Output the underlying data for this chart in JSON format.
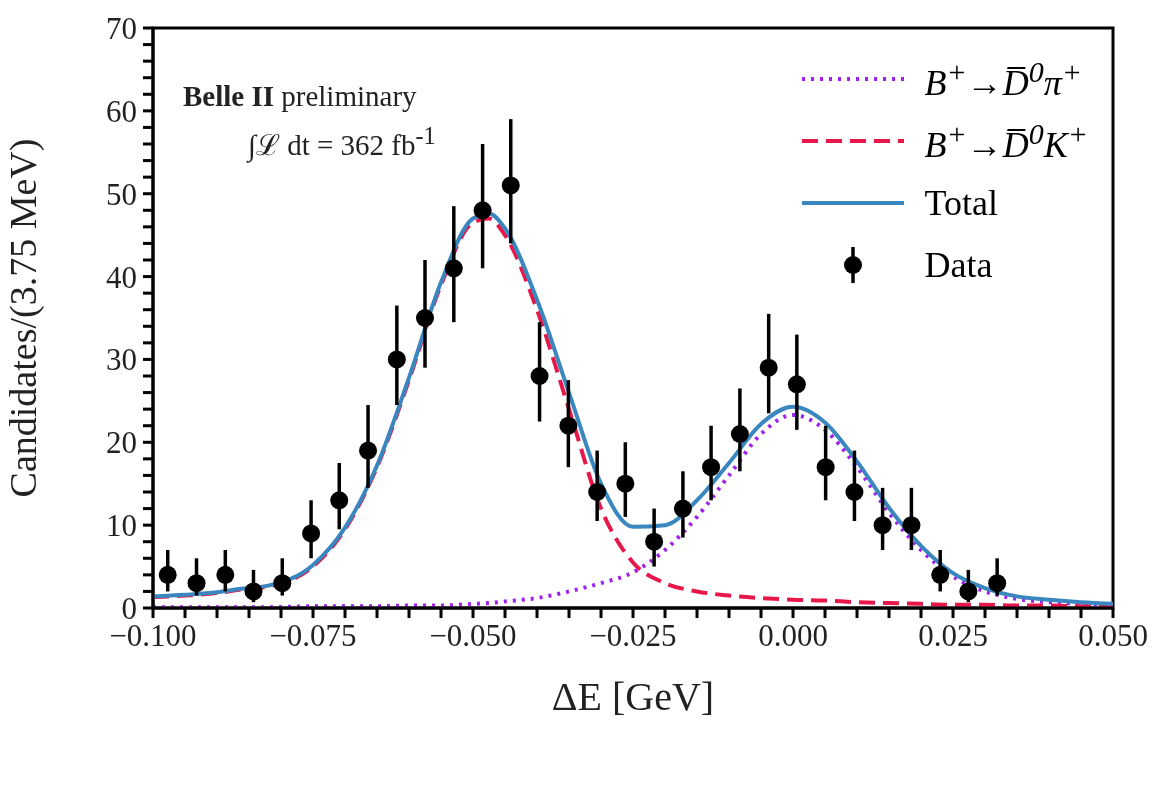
{
  "chart_data": {
    "type": "line",
    "xlabel": "ΔE [GeV]",
    "ylabel": "Candidates/(3.75 MeV)",
    "annotations": [
      "Belle II preliminary",
      "∫ℒ dt = 362 fb$^{-1}$"
    ],
    "xlim": [
      -0.1,
      0.05
    ],
    "ylim": [
      0,
      70
    ],
    "xticks": [
      {
        "value": -0.1,
        "label": "−0.100"
      },
      {
        "value": -0.095,
        "label": null
      },
      {
        "value": -0.09,
        "label": null
      },
      {
        "value": -0.085,
        "label": null
      },
      {
        "value": -0.08,
        "label": null
      },
      {
        "value": -0.075,
        "label": "−0.075"
      },
      {
        "value": -0.07,
        "label": null
      },
      {
        "value": -0.065,
        "label": null
      },
      {
        "value": -0.06,
        "label": null
      },
      {
        "value": -0.055,
        "label": null
      },
      {
        "value": -0.05,
        "label": "−0.050"
      },
      {
        "value": -0.045,
        "label": null
      },
      {
        "value": -0.04,
        "label": null
      },
      {
        "value": -0.035,
        "label": null
      },
      {
        "value": -0.03,
        "label": null
      },
      {
        "value": -0.025,
        "label": "−0.025"
      },
      {
        "value": -0.02,
        "label": null
      },
      {
        "value": -0.015,
        "label": null
      },
      {
        "value": -0.01,
        "label": null
      },
      {
        "value": -0.005,
        "label": null
      },
      {
        "value": 0,
        "label": "0.000"
      },
      {
        "value": 0.005,
        "label": null
      },
      {
        "value": 0.01,
        "label": null
      },
      {
        "value": 0.015,
        "label": null
      },
      {
        "value": 0.02,
        "label": null
      },
      {
        "value": 0.025,
        "label": "0.025"
      },
      {
        "value": 0.03,
        "label": null
      },
      {
        "value": 0.035,
        "label": null
      },
      {
        "value": 0.04,
        "label": null
      },
      {
        "value": 0.045,
        "label": null
      },
      {
        "value": 0.05,
        "label": "0.050"
      }
    ],
    "yticks": [
      0,
      {
        "value": 2,
        "label": null
      },
      {
        "value": 4,
        "label": null
      },
      {
        "value": 6,
        "label": null
      },
      {
        "value": 8,
        "label": null
      },
      10,
      {
        "value": 12,
        "label": null
      },
      {
        "value": 14,
        "label": null
      },
      {
        "value": 16,
        "label": null
      },
      {
        "value": 18,
        "label": null
      },
      20,
      {
        "value": 22,
        "label": null
      },
      {
        "value": 24,
        "label": null
      },
      {
        "value": 26,
        "label": null
      },
      {
        "value": 28,
        "label": null
      },
      30,
      {
        "value": 32,
        "label": null
      },
      {
        "value": 34,
        "label": null
      },
      {
        "value": 36,
        "label": null
      },
      {
        "value": 38,
        "label": null
      },
      40,
      {
        "value": 42,
        "label": null
      },
      {
        "value": 44,
        "label": null
      },
      {
        "value": 46,
        "label": null
      },
      {
        "value": 48,
        "label": null
      },
      50,
      {
        "value": 52,
        "label": null
      },
      {
        "value": 54,
        "label": null
      },
      {
        "value": 56,
        "label": null
      },
      {
        "value": 58,
        "label": null
      },
      60,
      {
        "value": 62,
        "label": null
      },
      {
        "value": 64,
        "label": null
      },
      {
        "value": 66,
        "label": null
      },
      {
        "value": 68,
        "label": null
      },
      70
    ],
    "grid": false,
    "legend": "top right",
    "x": [
      -0.1,
      -0.095,
      -0.09,
      -0.0865,
      -0.082,
      -0.075,
      -0.07,
      -0.065,
      -0.06,
      -0.055,
      -0.05,
      -0.0475,
      -0.045,
      -0.04,
      -0.035,
      -0.03,
      -0.025,
      -0.02,
      -0.015,
      -0.01,
      -0.005,
      0,
      0.005,
      0.01,
      0.015,
      0.02,
      0.025,
      0.03,
      0.035,
      0.04,
      0.045,
      0.05
    ],
    "series": [
      {
        "name": "B$^{+}$→D̅$^{0}$π$^{+}$",
        "color": "#a020f0",
        "line_style": "dotted",
        "values": [
          0.1,
          0.1,
          0.1,
          0.1,
          0.1,
          0.2,
          0.2,
          0.2,
          0.3,
          0.3,
          0.5,
          0.6,
          0.8,
          1.2,
          2,
          3,
          4.3,
          7,
          11,
          16,
          21,
          23.3,
          21.5,
          17,
          11.5,
          7,
          3.8,
          2,
          1.1,
          0.7,
          0.5,
          0.3
        ]
      },
      {
        "name": "B$^{+}$→D̅$^{0}$K$^{+}$",
        "color": "#e8174a",
        "line_style": "dashed",
        "values": [
          1.3,
          1.5,
          1.8,
          2.2,
          2.6,
          5,
          9.5,
          17,
          27.5,
          39,
          46.5,
          47,
          45,
          36,
          24,
          12,
          5.5,
          3,
          2,
          1.5,
          1.2,
          1,
          0.9,
          0.7,
          0.6,
          0.5,
          0.4,
          0.4,
          0.3,
          0.3,
          0.2,
          0.2
        ]
      },
      {
        "name": "Total",
        "color": "#3a87c0",
        "line_style": "solid",
        "values": [
          1.4,
          1.6,
          1.9,
          2.3,
          2.7,
          5.2,
          9.7,
          17.2,
          27.8,
          39.3,
          47,
          47.6,
          45.8,
          37.2,
          26,
          15,
          9.8,
          10,
          13,
          17.5,
          22.2,
          24.3,
          22.4,
          17.7,
          12.1,
          7.5,
          4.2,
          2.4,
          1.4,
          1,
          0.7,
          0.5
        ]
      },
      {
        "name": "Data",
        "type": "scatter",
        "color": "#000000",
        "marker": "circle",
        "x": [
          -0.0977,
          -0.0932,
          -0.0887,
          -0.0843,
          -0.0798,
          -0.0753,
          -0.0709,
          -0.0664,
          -0.0619,
          -0.0575,
          -0.053,
          -0.0485,
          -0.0441,
          -0.0396,
          -0.0351,
          -0.0306,
          -0.0262,
          -0.0217,
          -0.0172,
          -0.0128,
          -0.0083,
          -0.0038,
          0.0006,
          0.0051,
          0.0096,
          0.014,
          0.0185,
          0.023,
          0.0274,
          0.0319
        ],
        "values": [
          4,
          3,
          4,
          2,
          3,
          9,
          13,
          19,
          30,
          35,
          41,
          48,
          51,
          28,
          22,
          14,
          15,
          8,
          12,
          17,
          21,
          29,
          27,
          17,
          14,
          10,
          10,
          4,
          2,
          3
        ],
        "errors": [
          [
            2,
            7
          ],
          [
            1.5,
            6
          ],
          [
            2,
            7
          ],
          [
            0.7,
            4.6
          ],
          [
            1.5,
            6
          ],
          [
            6,
            13
          ],
          [
            9.5,
            17.5
          ],
          [
            14.5,
            24.5
          ],
          [
            24.5,
            36.5
          ],
          [
            29,
            42
          ],
          [
            34.5,
            48.5
          ],
          [
            41,
            56
          ],
          [
            44,
            59
          ],
          [
            22.5,
            34.5
          ],
          [
            17,
            27.5
          ],
          [
            10.5,
            19
          ],
          [
            11,
            20
          ],
          [
            5,
            12
          ],
          [
            8.5,
            16.5
          ],
          [
            13,
            22
          ],
          [
            16.5,
            26.5
          ],
          [
            23.5,
            35.5
          ],
          [
            21.5,
            33
          ],
          [
            13,
            22
          ],
          [
            10.5,
            19
          ],
          [
            7,
            14.5
          ],
          [
            7,
            14.5
          ],
          [
            2,
            7
          ],
          [
            0.7,
            4.6
          ],
          [
            1.5,
            6
          ]
        ]
      }
    ]
  }
}
